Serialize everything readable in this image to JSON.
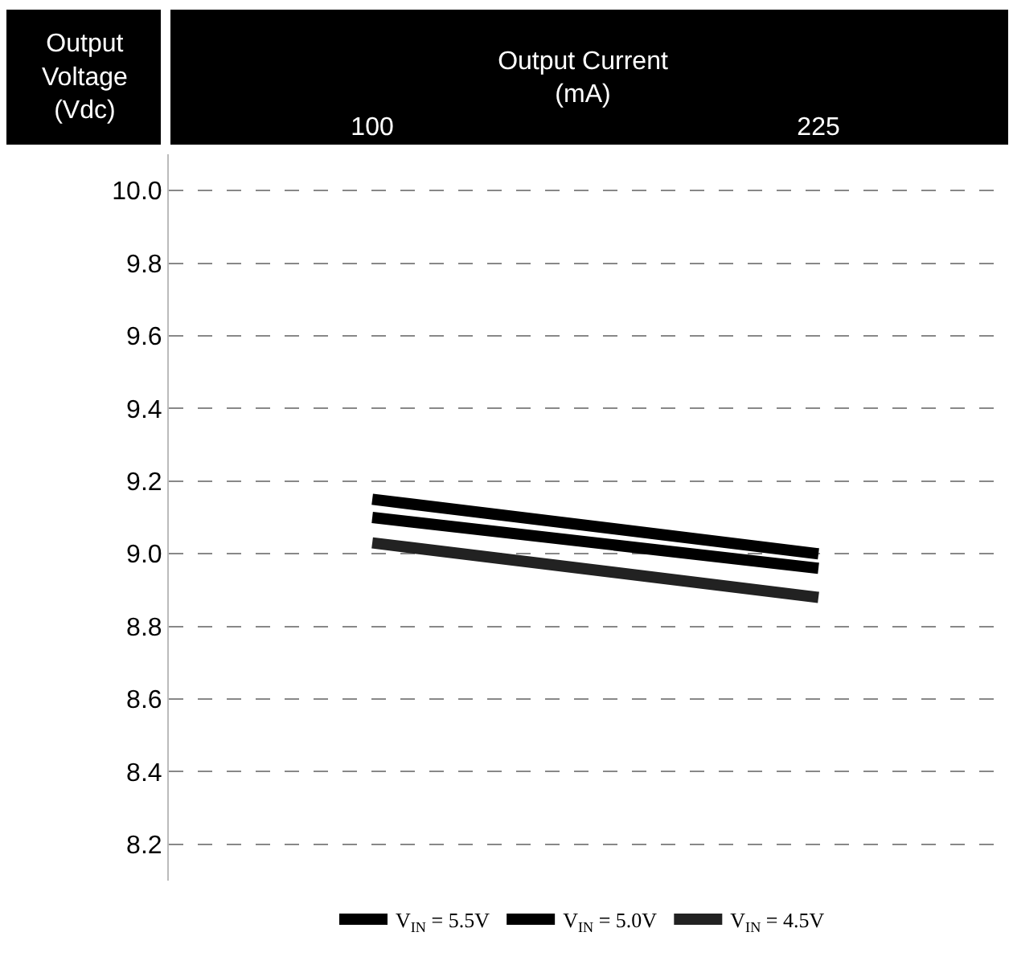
{
  "chart_data": {
    "type": "line",
    "xlabel": "Output Current\n(mA)",
    "ylabel": "Output\nVoltage\n(Vdc)",
    "x": [
      100,
      225
    ],
    "xlim": [
      43,
      275
    ],
    "xticks": [
      100,
      225
    ],
    "ylim": [
      8.1,
      10.1
    ],
    "yticks": [
      {
        "value": 8.2,
        "label": "8.2"
      },
      {
        "value": 8.4,
        "label": "8.4"
      },
      {
        "value": 8.6,
        "label": "8.6"
      },
      {
        "value": 8.8,
        "label": "8.8"
      },
      {
        "value": 9.0,
        "label": "9.0"
      },
      {
        "value": 9.2,
        "label": "9.2"
      },
      {
        "value": 9.4,
        "label": "9.4"
      },
      {
        "value": 9.6,
        "label": "9.6"
      },
      {
        "value": 9.8,
        "label": "9.8"
      },
      {
        "value": 10.0,
        "label": "10.0"
      }
    ],
    "series": [
      {
        "name": "V$_{IN}$ = 5.5V",
        "color": "#000000",
        "values": [
          9.15,
          9.0
        ]
      },
      {
        "name": "V$_{IN}$ = 5.0V",
        "color": "#000000",
        "values": [
          9.1,
          8.96
        ]
      },
      {
        "name": "V$_{IN}$ = 4.5V",
        "color": "#222222",
        "values": [
          9.03,
          8.88
        ]
      }
    ],
    "grid": "y",
    "legend": "bottom",
    "marker": "none",
    "line_style": "solid"
  }
}
